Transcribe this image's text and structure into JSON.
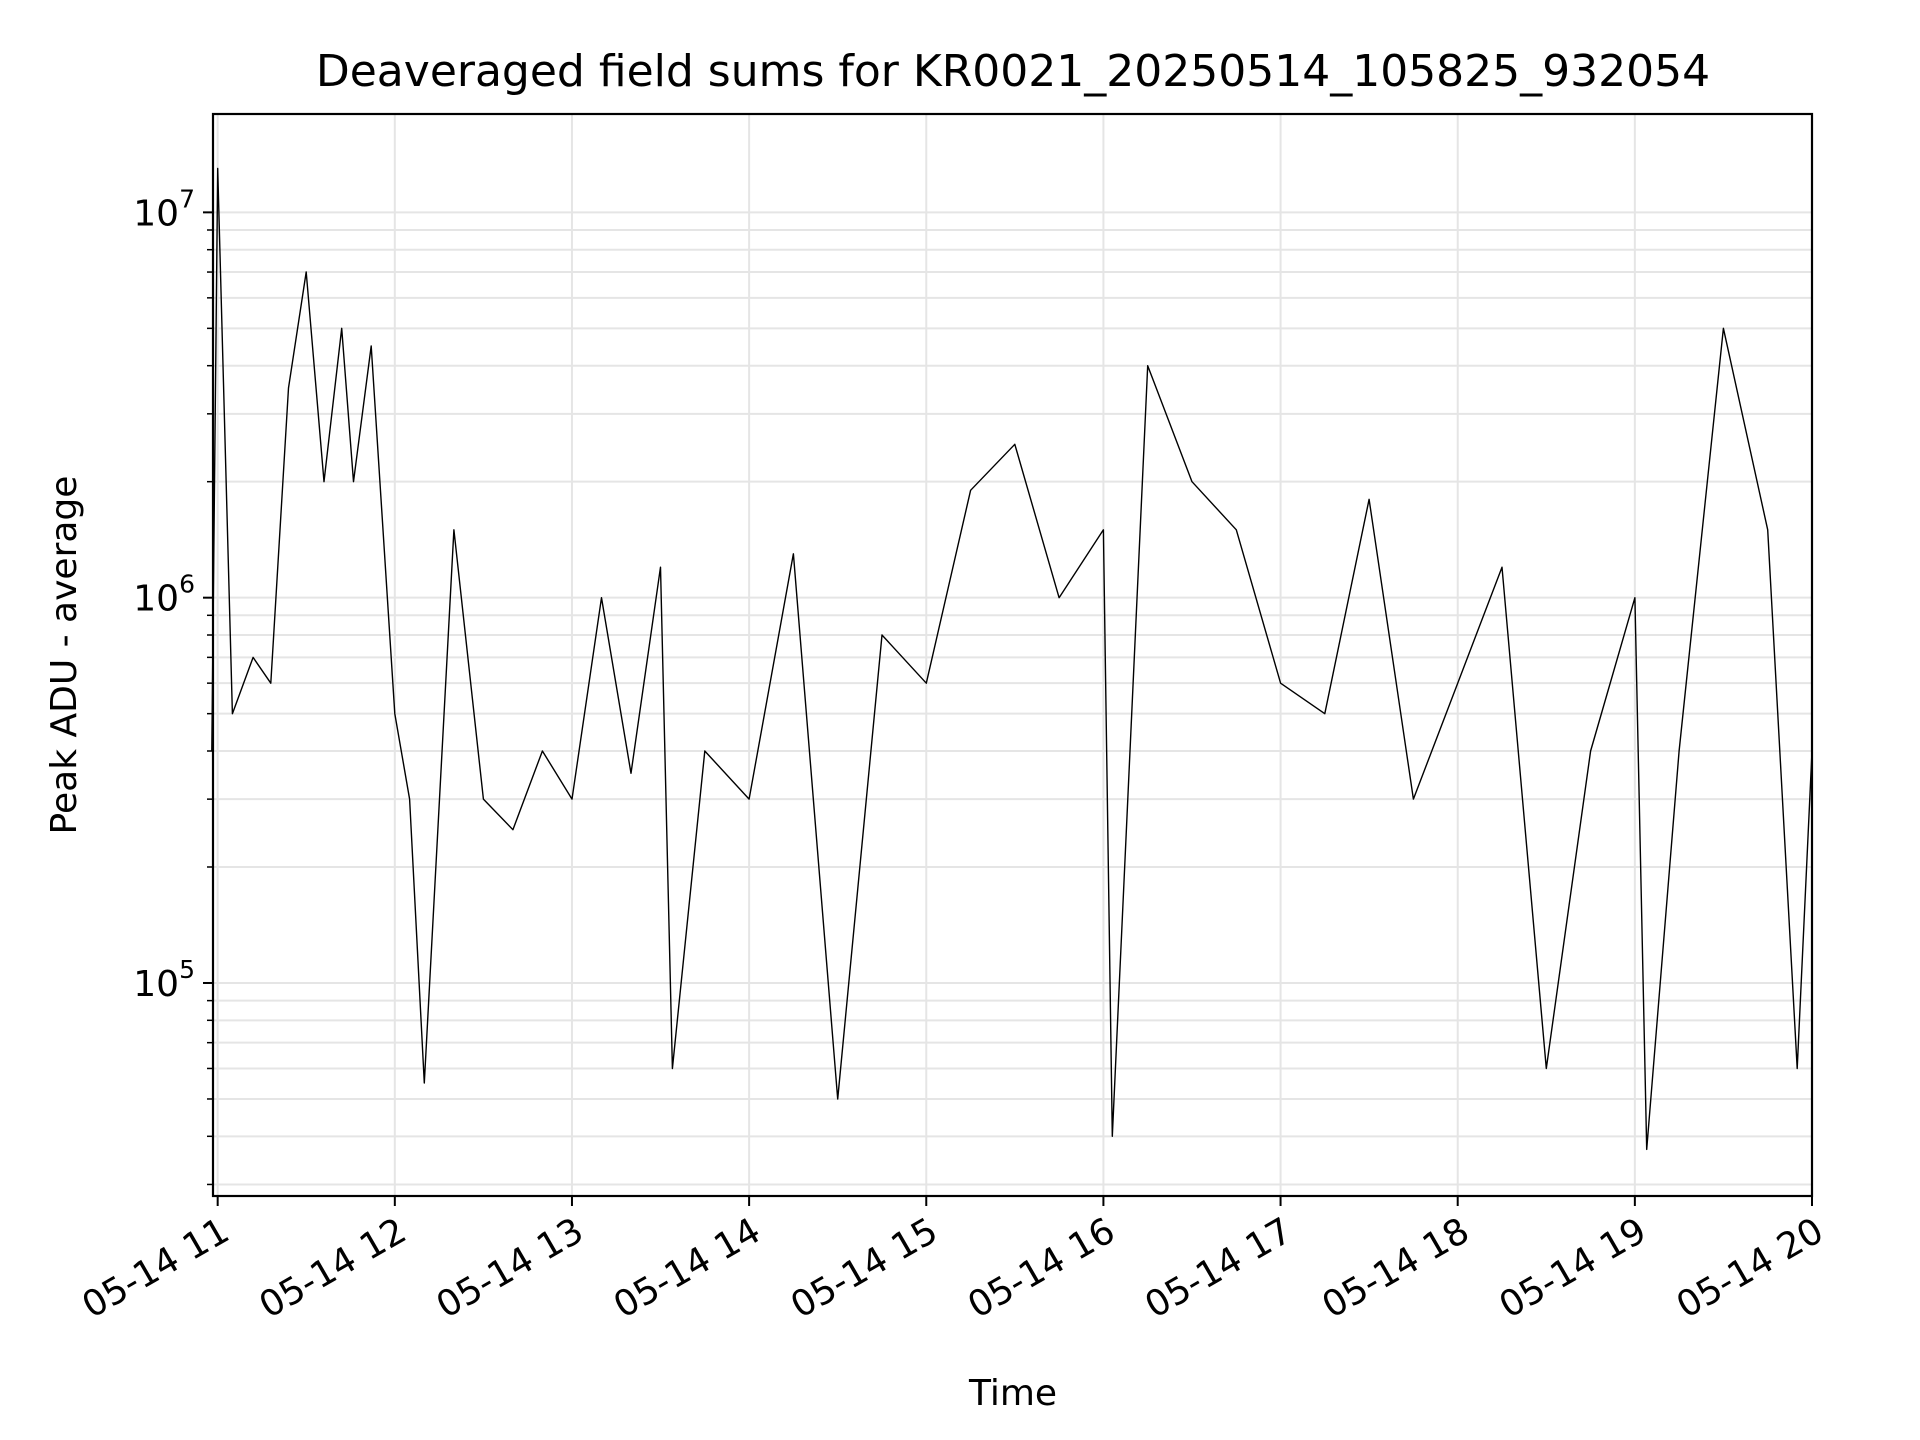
{
  "chart_data": {
    "type": "line",
    "title": "Deaveraged field sums for KR0021_20250514_105825_932054",
    "xlabel": "Time",
    "ylabel": "Peak ADU - average",
    "yscale": "log",
    "ylim": [
      28000,
      18000000
    ],
    "xlim": [
      "2025-05-14 10:58:25",
      "2025-05-14 20:00:00"
    ],
    "grid": true,
    "line_color": "#000000",
    "grid_color": "#e5e5e5",
    "x_ticks": [
      {
        "time": "2025-05-14 11:00",
        "label": "05-14 11"
      },
      {
        "time": "2025-05-14 12:00",
        "label": "05-14 12"
      },
      {
        "time": "2025-05-14 13:00",
        "label": "05-14 13"
      },
      {
        "time": "2025-05-14 14:00",
        "label": "05-14 14"
      },
      {
        "time": "2025-05-14 15:00",
        "label": "05-14 15"
      },
      {
        "time": "2025-05-14 16:00",
        "label": "05-14 16"
      },
      {
        "time": "2025-05-14 17:00",
        "label": "05-14 17"
      },
      {
        "time": "2025-05-14 18:00",
        "label": "05-14 18"
      },
      {
        "time": "2025-05-14 19:00",
        "label": "05-14 19"
      },
      {
        "time": "2025-05-14 20:00",
        "label": "05-14 20"
      }
    ],
    "y_ticks": [
      {
        "value": 100000,
        "base": "10",
        "exp": "5"
      },
      {
        "value": 1000000,
        "base": "10",
        "exp": "6"
      },
      {
        "value": 10000000,
        "base": "10",
        "exp": "7"
      }
    ],
    "series": [
      {
        "x": [
          "2025-05-14 10:58",
          "2025-05-14 11:00",
          "2025-05-14 11:05",
          "2025-05-14 11:12",
          "2025-05-14 11:18",
          "2025-05-14 11:24",
          "2025-05-14 11:30",
          "2025-05-14 11:36",
          "2025-05-14 11:42",
          "2025-05-14 11:46",
          "2025-05-14 11:52",
          "2025-05-14 12:00",
          "2025-05-14 12:05",
          "2025-05-14 12:10",
          "2025-05-14 12:20",
          "2025-05-14 12:30",
          "2025-05-14 12:40",
          "2025-05-14 12:50",
          "2025-05-14 13:00",
          "2025-05-14 13:10",
          "2025-05-14 13:20",
          "2025-05-14 13:30",
          "2025-05-14 13:34",
          "2025-05-14 13:45",
          "2025-05-14 14:00",
          "2025-05-14 14:15",
          "2025-05-14 14:30",
          "2025-05-14 14:45",
          "2025-05-14 15:00",
          "2025-05-14 15:15",
          "2025-05-14 15:30",
          "2025-05-14 15:45",
          "2025-05-14 16:00",
          "2025-05-14 16:03",
          "2025-05-14 16:15",
          "2025-05-14 16:30",
          "2025-05-14 16:45",
          "2025-05-14 17:00",
          "2025-05-14 17:15",
          "2025-05-14 17:30",
          "2025-05-14 17:45",
          "2025-05-14 18:00",
          "2025-05-14 18:15",
          "2025-05-14 18:30",
          "2025-05-14 18:45",
          "2025-05-14 19:00",
          "2025-05-14 19:04",
          "2025-05-14 19:15",
          "2025-05-14 19:30",
          "2025-05-14 19:45",
          "2025-05-14 19:55",
          "2025-05-14 20:00"
        ],
        "y": [
          400000,
          13000000,
          500000,
          700000,
          600000,
          3500000,
          7000000,
          2000000,
          5000000,
          2000000,
          4500000,
          500000,
          300000,
          55000,
          1500000,
          300000,
          250000,
          400000,
          300000,
          1000000,
          350000,
          1200000,
          60000,
          400000,
          300000,
          1300000,
          50000,
          800000,
          600000,
          1900000,
          2500000,
          1000000,
          1500000,
          40000,
          4000000,
          2000000,
          1500000,
          600000,
          500000,
          1800000,
          300000,
          600000,
          1200000,
          60000,
          400000,
          1000000,
          37000,
          400000,
          5000000,
          1500000,
          60000,
          400000
        ]
      }
    ]
  }
}
